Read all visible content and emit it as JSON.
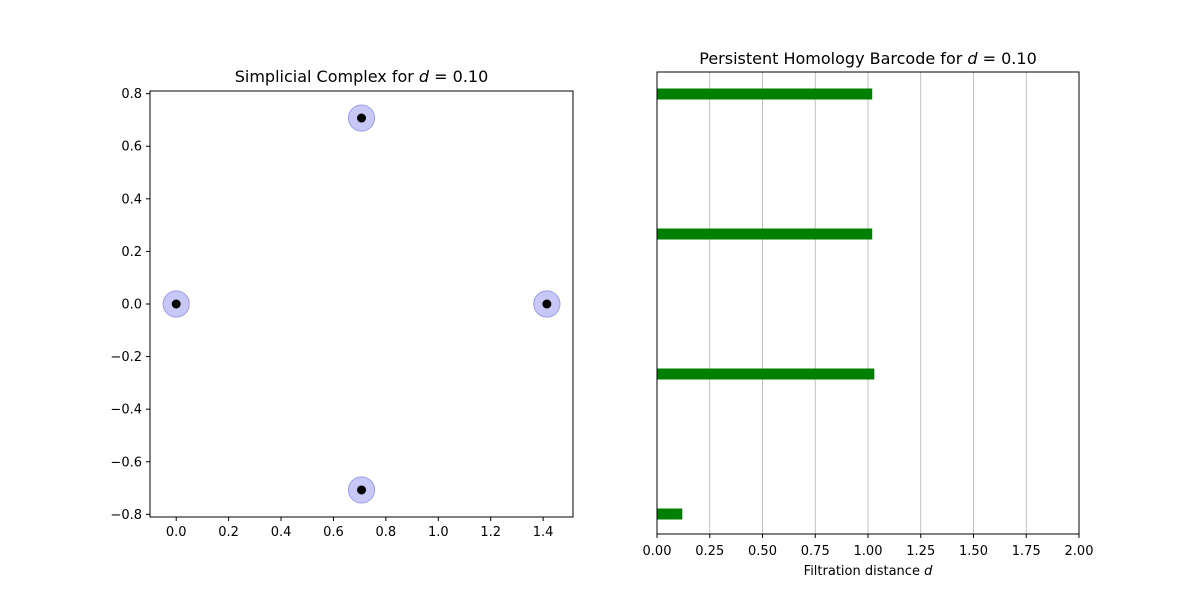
{
  "chart_data": [
    {
      "type": "scatter",
      "title_prefix": "Simplicial Complex for ",
      "title_var": "d",
      "title_value": " = 0.10",
      "xlim": [
        -0.1,
        1.514
      ],
      "ylim": [
        -0.81,
        0.81
      ],
      "xticks": [
        "0.0",
        "0.2",
        "0.4",
        "0.6",
        "0.8",
        "1.0",
        "1.2",
        "1.4"
      ],
      "xtick_values": [
        0.0,
        0.2,
        0.4,
        0.6,
        0.8,
        1.0,
        1.2,
        1.4
      ],
      "yticks": [
        "0.8",
        "0.6",
        "0.4",
        "0.2",
        "0.0",
        "−0.2",
        "−0.4",
        "−0.6",
        "−0.8"
      ],
      "ytick_values": [
        0.8,
        0.6,
        0.4,
        0.2,
        0.0,
        -0.2,
        -0.4,
        -0.6,
        -0.8
      ],
      "points": [
        {
          "x": 0.0,
          "y": 0.0
        },
        {
          "x": 0.7071,
          "y": 0.7071
        },
        {
          "x": 1.4142,
          "y": 0.0
        },
        {
          "x": 0.7071,
          "y": -0.7071
        }
      ],
      "ball_radius": 0.05,
      "colors": {
        "point": "#000000",
        "ball_fill": "#c8c8f6",
        "ball_edge": "#9d9dea"
      }
    },
    {
      "type": "bar",
      "orientation": "horizontal",
      "title_prefix": "Persistent Homology Barcode for ",
      "title_var": "d",
      "title_value": " = 0.10",
      "xlabel_prefix": "Filtration distance ",
      "xlabel_var": "d",
      "xlim": [
        0.0,
        2.0
      ],
      "xticks": [
        "0.00",
        "0.25",
        "0.50",
        "0.75",
        "1.00",
        "1.25",
        "1.50",
        "1.75",
        "2.00"
      ],
      "xtick_values": [
        0.0,
        0.25,
        0.5,
        0.75,
        1.0,
        1.25,
        1.5,
        1.75,
        2.0
      ],
      "grid_x": true,
      "bars": [
        {
          "start": 0.0,
          "end": 1.02
        },
        {
          "start": 0.0,
          "end": 1.02
        },
        {
          "start": 0.0,
          "end": 1.03
        },
        {
          "start": 0.0,
          "end": 0.12
        }
      ],
      "colors": {
        "bar": "#008000",
        "grid": "#b0b0b0"
      }
    }
  ]
}
